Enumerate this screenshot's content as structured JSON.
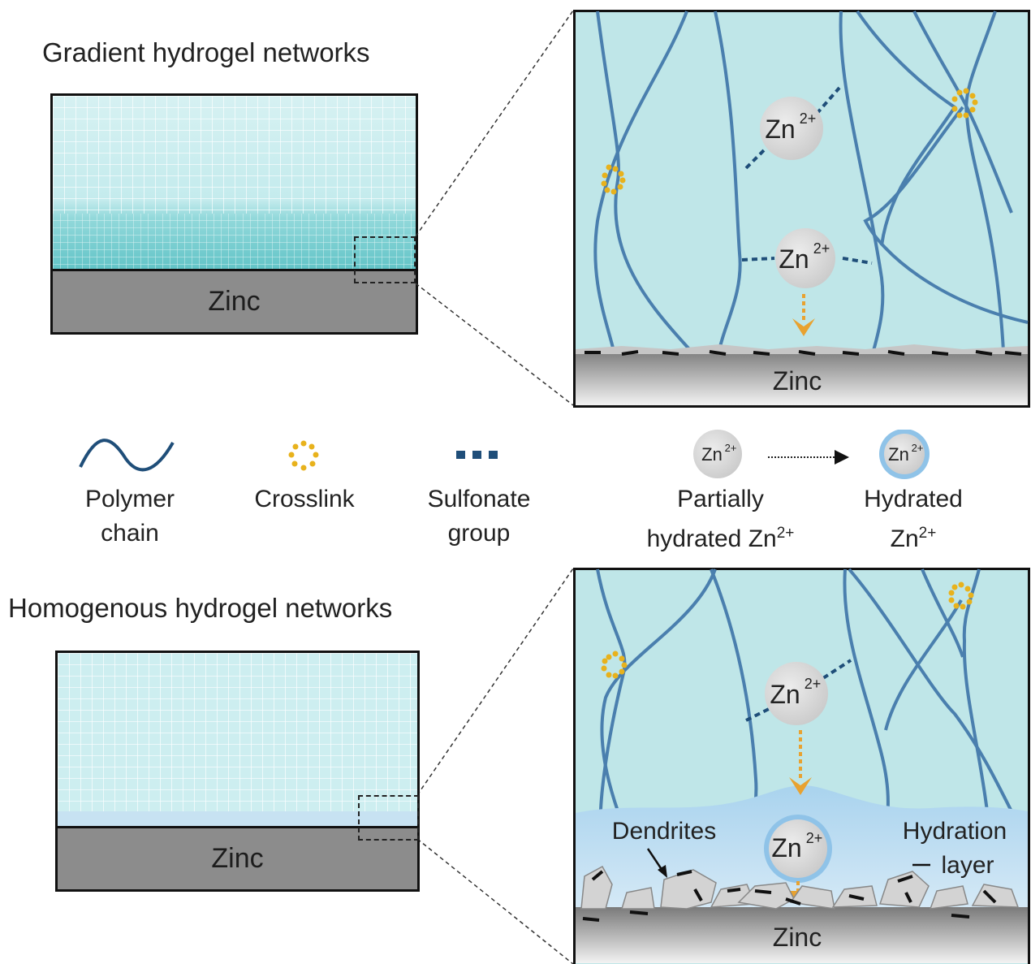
{
  "top": {
    "title": "Gradient hydrogel networks",
    "zinc_label": "Zinc",
    "zoom": {
      "zinc_label": "Zinc",
      "ion_label_1": "Zn",
      "ion_label_2": "Zn",
      "ion_sup": "2+"
    }
  },
  "legend": {
    "polymer_line1": "Polymer",
    "polymer_line2": "chain",
    "crosslink": "Crosslink",
    "sulfonate_line1": "Sulfonate",
    "sulfonate_line2": "group",
    "partial_line1": "Partially",
    "partial_line2": "hydrated Zn",
    "hydrated_line1": "Hydrated",
    "hydrated_line2": "Zn",
    "ion_symbol": "Zn",
    "ion_sup": "2+"
  },
  "bottom": {
    "title": "Homogenous hydrogel networks",
    "zinc_label": "Zinc",
    "zoom": {
      "zinc_label": "Zinc",
      "ion_label_1": "Zn",
      "ion_label_2": "Zn",
      "ion_sup": "2+",
      "dendrites_label": "Dendrites",
      "hydration_line1": "Hydration",
      "hydration_line2": "layer"
    }
  },
  "colors": {
    "gel_light": "#cdeef0",
    "gel_dense": "#6cc9cc",
    "zoom_bg": "#bfe6e8",
    "chain": "#4a7fae",
    "crosslink": "#e8b21c",
    "sulfonate": "#1f4e79",
    "ion_fill": "#d9d9d9",
    "hydration": "#8fc3e8",
    "arrow": "#e8a230",
    "zinc": "#8c8c8c"
  }
}
